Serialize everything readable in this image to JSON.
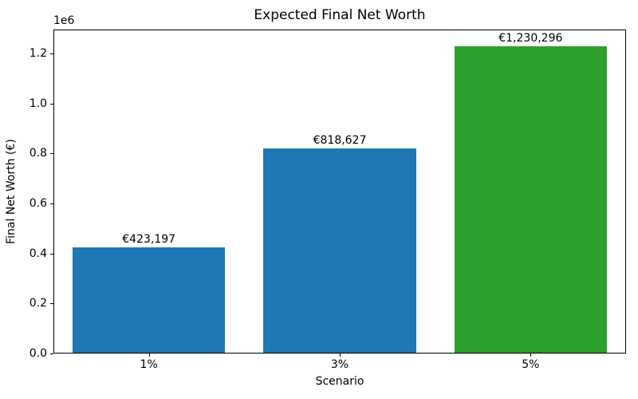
{
  "chart_data": {
    "type": "bar",
    "title": "Expected Final Net Worth",
    "xlabel": "Scenario",
    "ylabel": "Final Net Worth (€)",
    "y_offset_text": "1e6",
    "categories": [
      "1%",
      "3%",
      "5%"
    ],
    "values": [
      423197,
      818627,
      1230296
    ],
    "bar_labels": [
      "€423,197",
      "€818,627",
      "€1,230,296"
    ],
    "bar_colors": [
      "#1f77b4",
      "#1f77b4",
      "#2ca02c"
    ],
    "ylim": [
      0,
      1295745
    ],
    "yticks": [
      0,
      200000,
      400000,
      600000,
      800000,
      1000000,
      1200000
    ],
    "ytick_labels": [
      "0.0",
      "0.2",
      "0.4",
      "0.6",
      "0.8",
      "1.0",
      "1.2"
    ],
    "grid": false,
    "legend": null,
    "background_color": "#ffffff",
    "spine_color": "#000000",
    "text_color": "#000000"
  }
}
